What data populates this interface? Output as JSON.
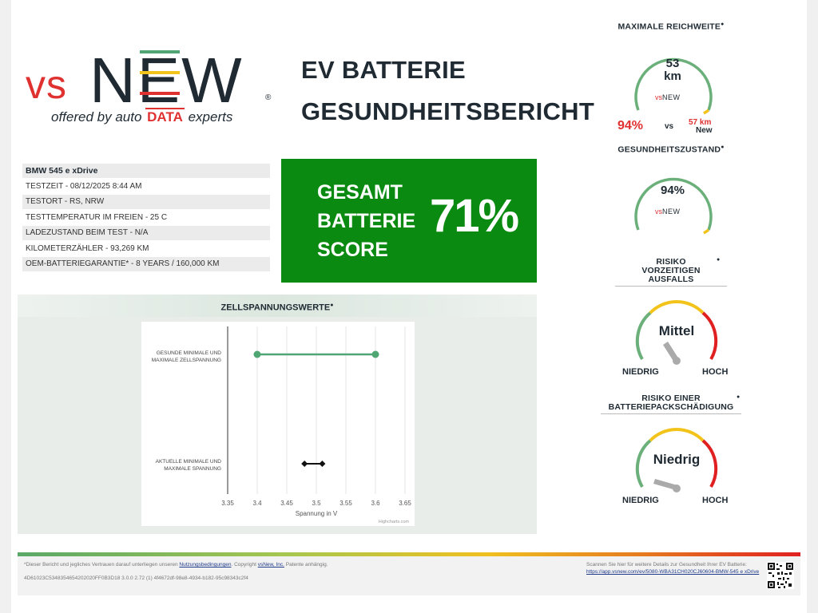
{
  "logo": {
    "vs": "vs",
    "new": "NEW",
    "reg": "®",
    "offered": "offered by auto",
    "data": "DATA",
    "experts": "experts"
  },
  "title": {
    "line1": "EV BATTERIE",
    "line2": "GESUNDHEITSBERICHT"
  },
  "vehicle": {
    "model": "BMW 545 e xDrive",
    "rows": [
      "TESTZEIT - 08/12/2025 8:44 AM",
      "TESTORT - RS, NRW",
      "TESTTEMPERATUR IM FREIEN - 25 C",
      "LADEZUSTAND BEIM TEST - N/A",
      "KILOMETERZÄHLER - 93,269 KM",
      "OEM-BATTERIEGARANTIE* - 8 YEARS / 160,000 KM"
    ]
  },
  "score": {
    "line1": "GESAMT",
    "line2": "BATTERIE",
    "line3": "SCORE",
    "value": "71%"
  },
  "cell_voltage": {
    "title": "ZELLSPANNUNGSWERTE",
    "credit": "Highcharts.com"
  },
  "chart_data": {
    "type": "scatter",
    "title": "ZELLSPANNUNGSWERTE",
    "xlabel": "Spannung in V",
    "xlim": [
      3.35,
      3.65
    ],
    "xticks": [
      "3.35",
      "3.4",
      "3.45",
      "3.5",
      "3.55",
      "3.6",
      "3.65"
    ],
    "categories": [
      "GESUNDE MINIMALE UND|MAXIMALE ZELLSPANNUNG",
      "AKTUELLE MINIMALE UND|MAXIMALE SPANNUNG"
    ],
    "series": [
      {
        "values": [
          3.4,
          3.6
        ],
        "color": "#4fa673"
      },
      {
        "values": [
          3.48,
          3.51
        ],
        "color": "#111111"
      }
    ]
  },
  "range": {
    "title": "MAXIMALE REICHWEITE",
    "value": "53",
    "unit": "km",
    "percent": "94%",
    "vs": "vs",
    "new_value": "57 km",
    "new_label": "New"
  },
  "health": {
    "title": "GESUNDHEITSZUSTAND",
    "value": "94%"
  },
  "risk_failure": {
    "title1": "RISIKO",
    "title2": "VORZEITIGEN",
    "title3": "AUSFALLS",
    "value": "Mittel",
    "low": "NIEDRIG",
    "high": "HOCH"
  },
  "risk_damage": {
    "title1": "RISIKO EINER",
    "title2": "BATTERIEPACKSCHÄDIGUNG",
    "value": "Niedrig",
    "low": "NIEDRIG",
    "high": "HOCH"
  },
  "footer": {
    "disc_pre": "*Dieser Bericht und jegliches Vertrauen darauf unterliegen unseren ",
    "terms": "Nutzungsbedingungen",
    "disc_mid": ". Copyright ",
    "company": "vsNew, Inc.",
    "disc_post": " Patente anhängig.",
    "hash": "4D61023C534835465420​2020FF0B3D18 3.0.0 2.72 (1) 4f4672df-98e8-4934-b182-95c98343c2f4",
    "scan": "Scannen Sie hier für weitere Details zur Gesundheit Ihrer EV Batterie:",
    "url": "https://app.vsnew.com/ev/5080-WBA31CH020CJ60604-BMW-545 e xDrive"
  },
  "colors": {
    "green": "#0a8a10",
    "red": "#e03131",
    "gauge_green": "#6bb07a",
    "gauge_yellow": "#f2c41b",
    "gauge_red": "#e02020"
  }
}
